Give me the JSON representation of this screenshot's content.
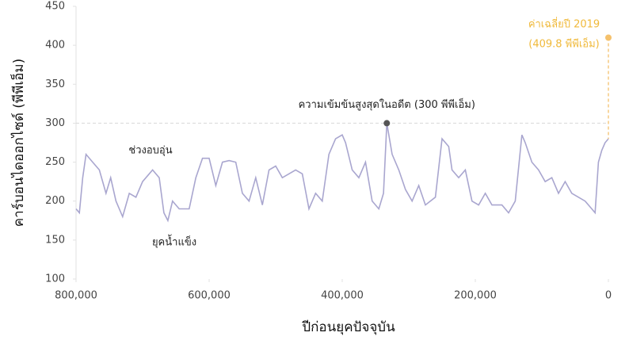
{
  "chart_data": {
    "type": "line",
    "x_label": "ปีก่อนยุคปัจจุบัน",
    "y_label": "คาร์บอนไดออกไซด์ (พีพีเอ็ม)",
    "xlim": [
      800000,
      0
    ],
    "ylim": [
      100,
      450
    ],
    "xticks": [
      {
        "value": 800000,
        "label": "800,000"
      },
      {
        "value": 600000,
        "label": "600,000"
      },
      {
        "value": 400000,
        "label": "400,000"
      },
      {
        "value": 200000,
        "label": "200,000"
      },
      0
    ],
    "yticks": [
      100,
      150,
      200,
      250,
      300,
      350,
      400,
      450
    ],
    "reference_line": 300,
    "series": [
      {
        "color": "#a9a6cf",
        "x": [
          800000,
          795000,
          790000,
          785000,
          775000,
          765000,
          755000,
          748000,
          740000,
          730000,
          720000,
          710000,
          700000,
          690000,
          685000,
          675000,
          668000,
          662000,
          655000,
          645000,
          630000,
          620000,
          610000,
          600000,
          590000,
          580000,
          570000,
          560000,
          550000,
          540000,
          530000,
          520000,
          510000,
          500000,
          490000,
          480000,
          470000,
          460000,
          450000,
          440000,
          430000,
          420000,
          410000,
          400000,
          395000,
          385000,
          375000,
          365000,
          355000,
          345000,
          338000,
          333000,
          325000,
          315000,
          305000,
          295000,
          285000,
          275000,
          260000,
          250000,
          240000,
          235000,
          225000,
          215000,
          205000,
          195000,
          185000,
          175000,
          160000,
          150000,
          140000,
          130000,
          125000,
          115000,
          105000,
          95000,
          85000,
          75000,
          65000,
          55000,
          45000,
          35000,
          25000,
          20000,
          15000,
          10000,
          5000,
          0
        ],
        "values": [
          190,
          185,
          230,
          260,
          250,
          240,
          210,
          230,
          200,
          180,
          210,
          205,
          225,
          235,
          240,
          230,
          185,
          175,
          200,
          190,
          190,
          230,
          255,
          255,
          220,
          250,
          252,
          250,
          210,
          200,
          230,
          195,
          240,
          245,
          230,
          235,
          240,
          235,
          190,
          210,
          200,
          260,
          280,
          285,
          275,
          240,
          230,
          250,
          200,
          190,
          210,
          300,
          260,
          240,
          215,
          200,
          220,
          195,
          205,
          280,
          270,
          240,
          230,
          240,
          200,
          195,
          210,
          195,
          195,
          185,
          200,
          285,
          275,
          250,
          240,
          225,
          230,
          210,
          225,
          210,
          205,
          200,
          190,
          185,
          250,
          265,
          275,
          280
        ]
      }
    ],
    "annotations": [
      "ช่วงอบอุ่น",
      "ยุคน้ำแข็ง"
    ],
    "peak": {
      "x": 333000,
      "value": 300,
      "label": "ความเข้มข้นสูงสุดในอดีต (300 พีพีเอ็ม)",
      "color": "#555555"
    },
    "current": {
      "x": 0,
      "value": 409.8,
      "label": [
        "ค่าเฉลี่ยปี 2019",
        "(409.8 พีพีเอ็ม)"
      ],
      "color": "#f5c16c"
    }
  }
}
